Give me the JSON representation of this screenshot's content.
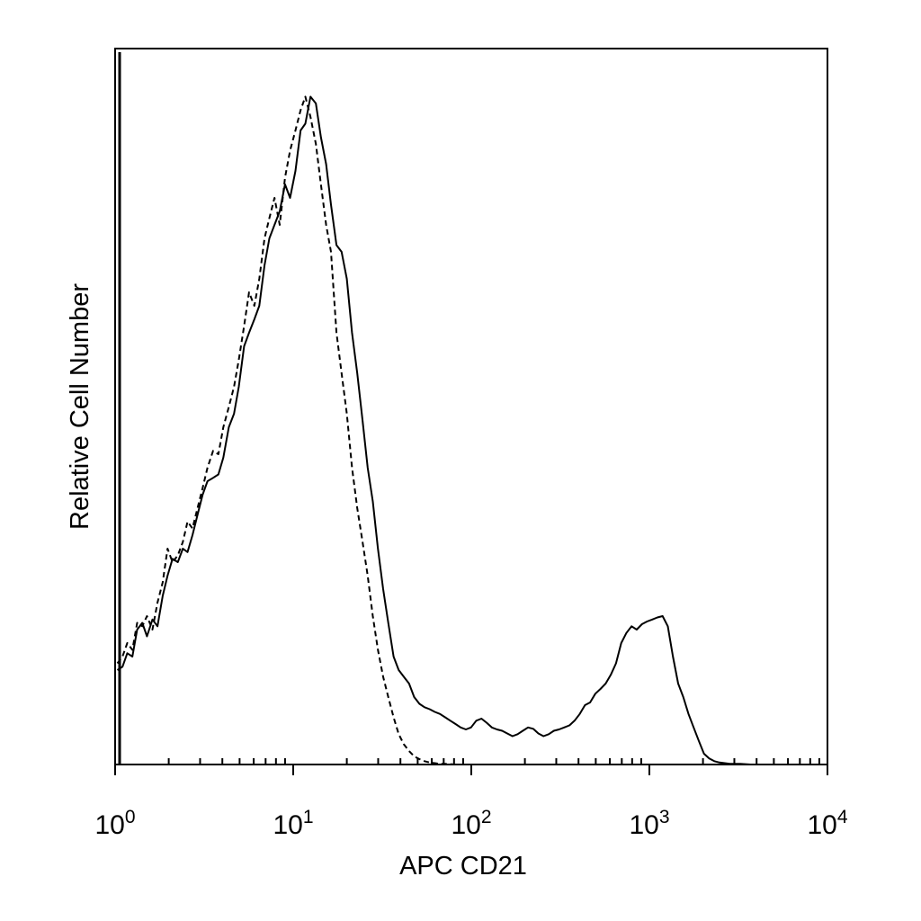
{
  "chart_data": {
    "type": "line",
    "xlabel": "APC CD21",
    "ylabel": "Relative Cell Number",
    "x_scale": "log",
    "xlim": [
      1,
      10000
    ],
    "ylim": [
      0,
      100
    ],
    "x_ticks": [
      {
        "base": "10",
        "exp": "0",
        "value": 1
      },
      {
        "base": "10",
        "exp": "1",
        "value": 10
      },
      {
        "base": "10",
        "exp": "2",
        "value": 100
      },
      {
        "base": "10",
        "exp": "3",
        "value": 1000
      },
      {
        "base": "10",
        "exp": "4",
        "value": 10000
      }
    ],
    "grid": false,
    "legend": "none",
    "series": [
      {
        "style": "solid",
        "color": "#000000",
        "x": [
          1.03,
          1.1,
          1.17,
          1.25,
          1.33,
          1.42,
          1.51,
          1.62,
          1.73,
          1.85,
          1.97,
          2.1,
          2.25,
          2.4,
          2.55,
          2.72,
          2.9,
          3.1,
          3.3,
          3.55,
          3.8,
          4.05,
          4.35,
          4.65,
          4.95,
          5.3,
          5.65,
          6.05,
          6.45,
          6.9,
          7.35,
          7.85,
          8.4,
          9.0,
          9.6,
          10.3,
          11.0,
          11.7,
          12.5,
          13.4,
          14.3,
          15.3,
          16.3,
          17.5,
          18.7,
          20.0,
          21.4,
          22.9,
          24.5,
          26.2,
          28.0,
          29.9,
          32.0,
          34.2,
          36.6,
          39.1,
          41.8,
          44.7,
          47.8,
          51.1,
          54.6,
          58.4,
          62.4,
          66.7,
          71.3,
          76.3,
          81.6,
          87.2,
          93.3,
          99.7,
          106.6,
          114.0,
          121.9,
          130.3,
          139.3,
          149.0,
          159.3,
          170.3,
          182.1,
          194.7,
          208.2,
          222.6,
          238.0,
          254.5,
          272.1,
          290.9,
          311.1,
          332.6,
          355.6,
          380.2,
          406.6,
          434.7,
          464.8,
          497.0,
          531.4,
          568.2,
          607.5,
          649.6,
          694.5,
          742.6,
          794.0,
          849.0,
          907.8,
          970.6,
          1037.8,
          1109.6,
          1186.4,
          1268.5,
          1356.3,
          1450.2,
          1550.5,
          1657.8,
          1772.6,
          1895.3,
          2026.5,
          2166.7,
          2316.7,
          2477.0,
          2648.5,
          2831.8,
          3027.8,
          3237.4,
          3461.5,
          3701.0,
          3957.2,
          4231.1,
          4524.0,
          4837.1,
          5171.9,
          5529.9,
          5912.6,
          6321.9,
          6759.4,
          7227.3,
          7727.5,
          8262.4,
          8834.3,
          9445.7,
          10000
        ],
        "y": [
          14,
          14.5,
          16.5,
          16,
          20,
          21,
          19,
          21.5,
          20.5,
          25,
          28,
          30.5,
          30,
          32,
          31.5,
          34,
          37,
          40,
          42,
          42.5,
          43,
          45.5,
          50,
          52,
          56,
          62,
          64,
          66,
          68,
          74,
          78,
          80,
          82,
          86,
          84,
          88,
          94,
          95,
          99,
          98,
          93,
          89,
          83,
          77,
          76,
          72,
          64,
          58,
          51,
          44,
          39,
          32,
          26,
          21,
          16,
          14,
          13,
          12,
          10,
          9,
          8.5,
          8.2,
          7.8,
          7.5,
          7.0,
          6.5,
          6.0,
          5.5,
          5.2,
          5.5,
          6.5,
          6.8,
          6.2,
          5.5,
          5.2,
          5.0,
          4.6,
          4.2,
          4.5,
          5.0,
          5.5,
          5.3,
          4.6,
          4.2,
          4.5,
          5.0,
          5.2,
          5.5,
          5.8,
          6.5,
          7.5,
          8.8,
          9.2,
          10.5,
          11.2,
          12.0,
          13.3,
          15.0,
          18.0,
          19.5,
          20.5,
          20.0,
          20.8,
          21.2,
          21.5,
          21.8,
          22.0,
          20.5,
          16.0,
          12.0,
          10.0,
          7.5,
          5.5,
          3.5,
          1.6,
          0.9,
          0.5,
          0.3,
          0.2,
          0.1,
          0.1,
          0.1,
          0.05,
          0,
          0,
          0,
          0,
          0,
          0,
          0,
          0,
          0,
          0,
          0,
          0,
          0,
          0,
          0,
          0
        ]
      },
      {
        "style": "dashed",
        "color": "#000000",
        "x": [
          1.03,
          1.1,
          1.17,
          1.25,
          1.33,
          1.42,
          1.51,
          1.62,
          1.73,
          1.85,
          1.97,
          2.1,
          2.25,
          2.4,
          2.55,
          2.72,
          2.9,
          3.1,
          3.3,
          3.55,
          3.8,
          4.05,
          4.35,
          4.65,
          4.95,
          5.3,
          5.65,
          6.05,
          6.45,
          6.9,
          7.35,
          7.85,
          8.4,
          9.0,
          9.6,
          10.3,
          11.0,
          11.7,
          12.5,
          13.4,
          14.3,
          15.3,
          16.3,
          17.5,
          18.7,
          20.0,
          21.4,
          22.9,
          24.5,
          26.2,
          28.0,
          29.9,
          32.0,
          34.2,
          36.6,
          39.1,
          41.8,
          44.7,
          47.8,
          51.1,
          54.6,
          58.4,
          62.4,
          66.7,
          71.3,
          76.3,
          81.6,
          87.2,
          93.3,
          99.7,
          106.6,
          114.0,
          121.9,
          130.3,
          149.0,
          182.1,
          222.6,
          272.1,
          332.6,
          406.6,
          497.0,
          607.5,
          742.6,
          907.8,
          1109.6,
          1356.3,
          1657.8,
          2026.5,
          2477.0,
          3027.8,
          3701.0,
          4524.0,
          5529.9,
          6759.4,
          8262.4,
          10000
        ],
        "y": [
          15,
          16,
          18,
          17,
          21,
          20.5,
          22,
          20,
          24,
          27,
          32,
          30,
          31,
          33,
          36,
          35,
          38,
          41,
          44,
          46.5,
          46,
          50,
          53,
          56,
          60,
          65,
          70,
          68,
          72,
          78,
          81,
          84,
          80,
          87,
          91,
          94,
          97,
          99,
          96,
          92,
          86,
          80,
          76,
          64,
          58,
          52,
          44,
          38,
          33,
          28,
          22,
          17,
          13,
          10,
          7,
          4.5,
          3.0,
          2.0,
          1.2,
          0.8,
          0.5,
          0.3,
          0.2,
          0.1,
          0.1,
          0.05,
          0,
          0,
          0,
          0,
          0,
          0,
          0,
          0,
          0,
          0,
          0,
          0,
          0,
          0,
          0,
          0,
          0,
          0,
          0,
          0,
          0,
          0,
          0,
          0,
          0,
          0,
          0,
          0,
          0,
          0
        ]
      }
    ]
  }
}
